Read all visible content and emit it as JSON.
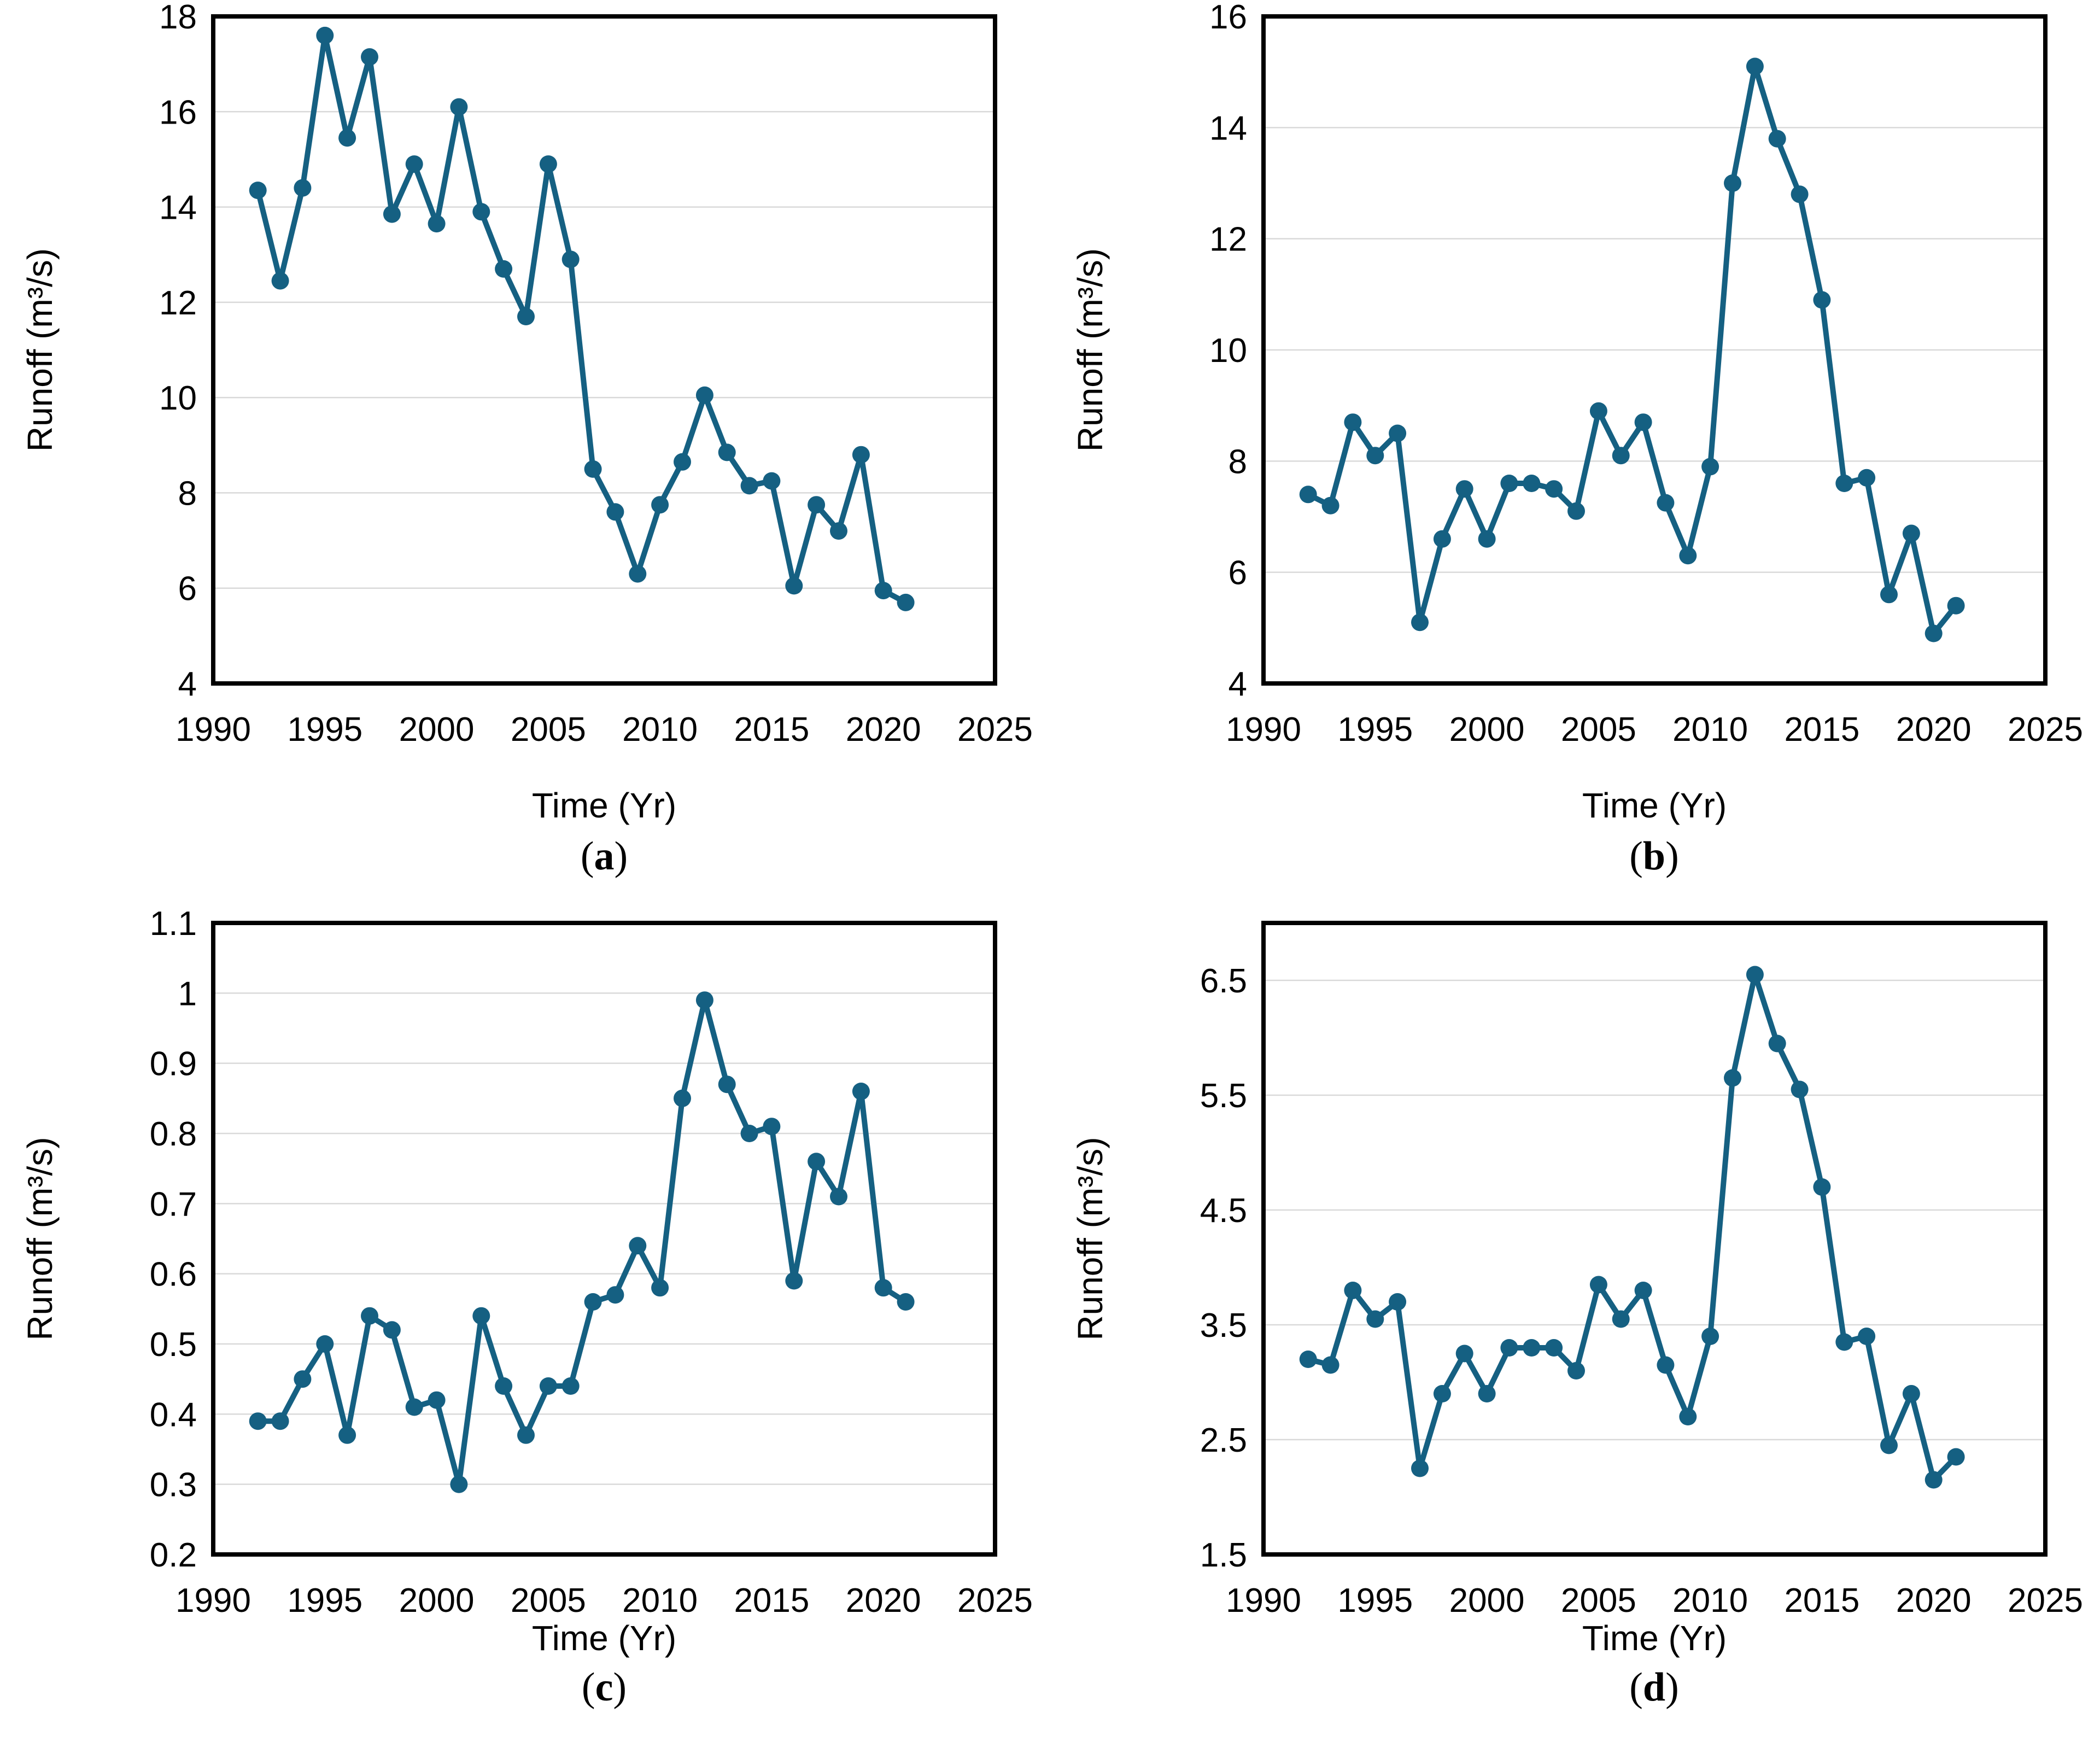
{
  "styles": {
    "line_color": "#156082",
    "grid_color": "#d9d9d9",
    "axis_color": "#000000",
    "background": "#ffffff"
  },
  "caption_format": {
    "open": "(",
    "close": ")"
  },
  "chart_data": [
    {
      "type": "line",
      "caption_letter": "a",
      "xlabel": "Time (Yr)",
      "ylabel": "Runoff (m³/s)",
      "legend": "none",
      "grid": true,
      "xlim": [
        1990,
        2025
      ],
      "xticks": [
        1990,
        1995,
        2000,
        2005,
        2010,
        2015,
        2020,
        2025
      ],
      "ylim": [
        4,
        18
      ],
      "yticks": [
        4,
        6,
        8,
        10,
        12,
        14,
        16,
        18
      ],
      "ytick_labels": [
        "4",
        "6",
        "8",
        "10",
        "12",
        "14",
        "16",
        "18"
      ],
      "x": [
        1992,
        1993,
        1994,
        1995,
        1996,
        1997,
        1998,
        1999,
        2000,
        2001,
        2002,
        2003,
        2004,
        2005,
        2006,
        2007,
        2008,
        2009,
        2010,
        2011,
        2012,
        2013,
        2014,
        2015,
        2016,
        2017,
        2018,
        2019,
        2020,
        2021
      ],
      "values": [
        14.35,
        12.45,
        14.4,
        17.6,
        15.45,
        17.15,
        13.85,
        14.9,
        13.65,
        16.1,
        13.9,
        12.7,
        11.7,
        14.9,
        12.9,
        8.5,
        7.6,
        6.3,
        7.75,
        8.65,
        10.05,
        8.85,
        8.15,
        8.25,
        6.05,
        7.75,
        7.2,
        8.8,
        5.95,
        5.7
      ]
    },
    {
      "type": "line",
      "caption_letter": "b",
      "xlabel": "Time (Yr)",
      "ylabel": "Runoff (m³/s)",
      "legend": "none",
      "grid": true,
      "xlim": [
        1990,
        2025
      ],
      "xticks": [
        1990,
        1995,
        2000,
        2005,
        2010,
        2015,
        2020,
        2025
      ],
      "ylim": [
        4,
        16
      ],
      "yticks": [
        4,
        6,
        8,
        10,
        12,
        14,
        16
      ],
      "ytick_labels": [
        "4",
        "6",
        "8",
        "10",
        "12",
        "14",
        "16"
      ],
      "x": [
        1992,
        1993,
        1994,
        1995,
        1996,
        1997,
        1998,
        1999,
        2000,
        2001,
        2002,
        2003,
        2004,
        2005,
        2006,
        2007,
        2008,
        2009,
        2010,
        2011,
        2012,
        2013,
        2014,
        2015,
        2016,
        2017,
        2018,
        2019,
        2020,
        2021
      ],
      "values": [
        7.4,
        7.2,
        8.7,
        8.1,
        8.5,
        5.1,
        6.6,
        7.5,
        6.6,
        7.6,
        7.6,
        7.5,
        7.1,
        8.9,
        8.1,
        8.7,
        7.25,
        6.3,
        7.9,
        13.0,
        15.1,
        13.8,
        12.8,
        10.9,
        7.6,
        7.7,
        5.6,
        6.7,
        4.9,
        5.4
      ]
    },
    {
      "type": "line",
      "caption_letter": "c",
      "xlabel": "Time (Yr)",
      "ylabel": "Runoff (m³/s)",
      "legend": "none",
      "grid": true,
      "xlim": [
        1990,
        2025
      ],
      "xticks": [
        1990,
        1995,
        2000,
        2005,
        2010,
        2015,
        2020,
        2025
      ],
      "ylim": [
        0.2,
        1.1
      ],
      "yticks": [
        0.2,
        0.3,
        0.4,
        0.5,
        0.6,
        0.7,
        0.8,
        0.9,
        1.0,
        1.1
      ],
      "ytick_labels": [
        "0.2",
        "0.3",
        "0.4",
        "0.5",
        "0.6",
        "0.7",
        "0.8",
        "0.9",
        "1",
        "1.1"
      ],
      "x": [
        1992,
        1993,
        1994,
        1995,
        1996,
        1997,
        1998,
        1999,
        2000,
        2001,
        2002,
        2003,
        2004,
        2005,
        2006,
        2007,
        2008,
        2009,
        2010,
        2011,
        2012,
        2013,
        2014,
        2015,
        2016,
        2017,
        2018,
        2019,
        2020,
        2021
      ],
      "values": [
        0.39,
        0.39,
        0.45,
        0.5,
        0.37,
        0.54,
        0.52,
        0.41,
        0.42,
        0.3,
        0.54,
        0.44,
        0.37,
        0.44,
        0.44,
        0.56,
        0.57,
        0.64,
        0.58,
        0.85,
        0.99,
        0.87,
        0.8,
        0.81,
        0.59,
        0.76,
        0.71,
        0.86,
        0.58,
        0.56
      ]
    },
    {
      "type": "line",
      "caption_letter": "d",
      "xlabel": "Time (Yr)",
      "ylabel": "Runoff (m³/s)",
      "legend": "none",
      "grid": true,
      "xlim": [
        1990,
        2025
      ],
      "xticks": [
        1990,
        1995,
        2000,
        2005,
        2010,
        2015,
        2020,
        2025
      ],
      "ylim": [
        1.5,
        7.0
      ],
      "yticks": [
        1.5,
        2.5,
        3.5,
        4.5,
        5.5,
        6.5
      ],
      "ytick_labels": [
        "1.5",
        "2.5",
        "3.5",
        "4.5",
        "5.5",
        "6.5"
      ],
      "x": [
        1992,
        1993,
        1994,
        1995,
        1996,
        1997,
        1998,
        1999,
        2000,
        2001,
        2002,
        2003,
        2004,
        2005,
        2006,
        2007,
        2008,
        2009,
        2010,
        2011,
        2012,
        2013,
        2014,
        2015,
        2016,
        2017,
        2018,
        2019,
        2020,
        2021
      ],
      "values": [
        3.2,
        3.15,
        3.8,
        3.55,
        3.7,
        2.25,
        2.9,
        3.25,
        2.9,
        3.3,
        3.3,
        3.3,
        3.1,
        3.85,
        3.55,
        3.8,
        3.15,
        2.7,
        3.4,
        5.65,
        6.55,
        5.95,
        5.55,
        4.7,
        3.35,
        3.4,
        2.45,
        2.9,
        2.15,
        2.35
      ]
    }
  ]
}
